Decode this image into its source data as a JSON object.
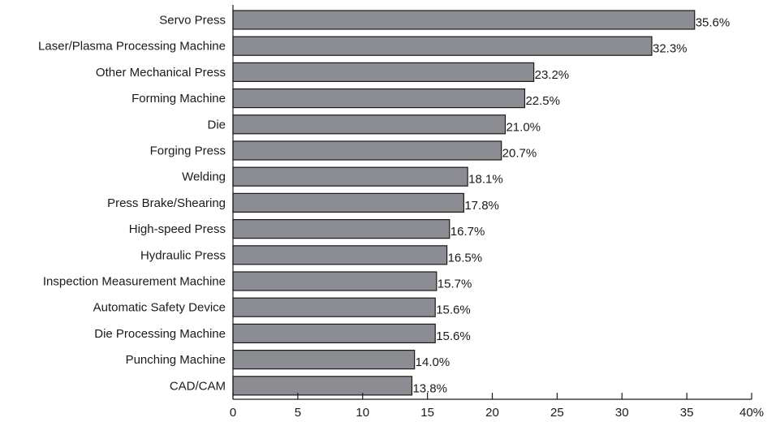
{
  "chart_data": {
    "type": "bar",
    "orientation": "horizontal",
    "categories": [
      "Servo Press",
      "Laser/Plasma Processing Machine",
      "Other Mechanical Press",
      "Forming Machine",
      "Die",
      "Forging Press",
      "Welding",
      "Press Brake/Shearing",
      "High-speed Press",
      "Hydraulic Press",
      "Inspection Measurement Machine",
      "Automatic Safety Device",
      "Die Processing Machine",
      "Punching Machine",
      "CAD/CAM"
    ],
    "values": [
      35.6,
      32.3,
      23.2,
      22.5,
      21.0,
      20.7,
      18.1,
      17.8,
      16.7,
      16.5,
      15.7,
      15.6,
      15.6,
      14.0,
      13.8
    ],
    "value_labels": [
      "35.6%",
      "32.3%",
      "23.2%",
      "22.5%",
      "21.0%",
      "20.7%",
      "18.1%",
      "17.8%",
      "16.7%",
      "16.5%",
      "15.7%",
      "15.6%",
      "15.6%",
      "14.0%",
      "13.8%"
    ],
    "xlim": [
      0,
      40
    ],
    "xticks": [
      0,
      5,
      10,
      15,
      20,
      25,
      30,
      35,
      40
    ],
    "xtick_labels": [
      "0",
      "5",
      "10",
      "15",
      "20",
      "25",
      "30",
      "35",
      "40%"
    ],
    "title": "",
    "xlabel": "",
    "ylabel": "",
    "grid": false,
    "bar_color": "#8c8d92",
    "edge_color": "#1a1a1a"
  }
}
